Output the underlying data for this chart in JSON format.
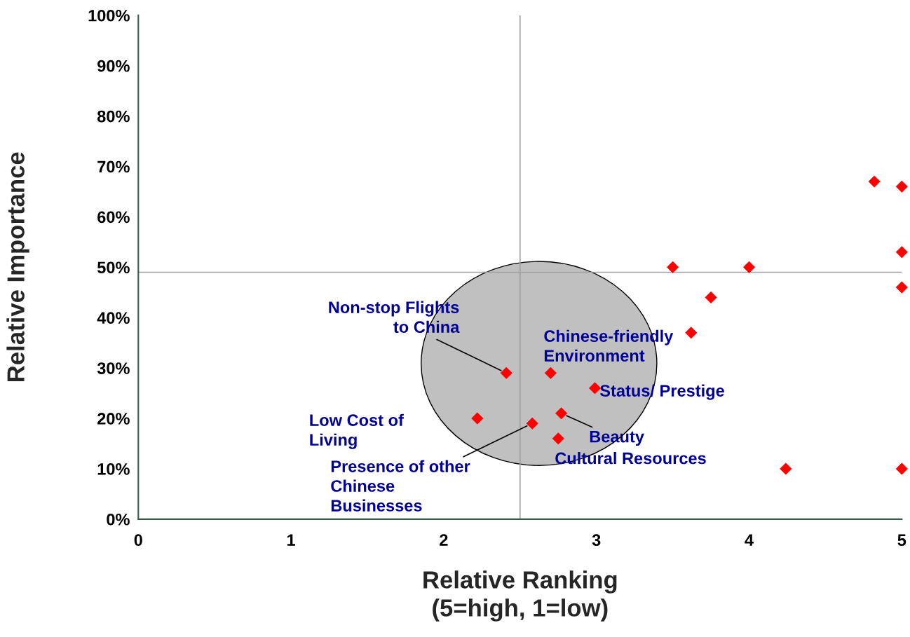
{
  "chart_data": {
    "type": "scatter",
    "xlabel": "Relative Ranking\n(5=high, 1=low)",
    "ylabel": "Relative Importance",
    "series": [
      {
        "color": "#ff0000",
        "x": [
          4.82,
          5,
          5,
          5,
          3.5,
          4.0,
          3.75,
          3.62,
          2.41,
          2.7,
          2.99,
          2.22,
          2.58,
          2.77,
          2.75,
          4.24,
          5
        ],
        "values": [
          67,
          66,
          53,
          46,
          50,
          50,
          44,
          37,
          29,
          29,
          26,
          20,
          19,
          21,
          16,
          10,
          10
        ]
      }
    ],
    "marker": "diamond",
    "legend": false,
    "grid": false,
    "xlim": [
      0,
      5
    ],
    "xticks": [
      0,
      1,
      2,
      3,
      4,
      5
    ],
    "ylim": [
      0,
      100
    ],
    "yticks": [
      {
        "value": 0,
        "label": "0%"
      },
      {
        "value": 10,
        "label": "10%"
      },
      {
        "value": 20,
        "label": "20%"
      },
      {
        "value": 30,
        "label": "30%"
      },
      {
        "value": 40,
        "label": "40%"
      },
      {
        "value": 50,
        "label": "50%"
      },
      {
        "value": 60,
        "label": "60%"
      },
      {
        "value": 70,
        "label": "70%"
      },
      {
        "value": 80,
        "label": "80%"
      },
      {
        "value": 90,
        "label": "90%"
      },
      {
        "value": 100,
        "label": "100%"
      }
    ],
    "ref_lines": [
      {
        "axis": "x",
        "value": 2.5,
        "color": "#a0a0a0"
      },
      {
        "axis": "y",
        "value": 49,
        "color": "#a0a0a0"
      }
    ],
    "annotations": [
      {
        "text": "Non-stop Flights\nto China",
        "x": 2.41,
        "y": 29
      },
      {
        "text": "Chinese-friendly\nEnvironment",
        "x": 2.7,
        "y": 29
      },
      {
        "text": "Status/ Prestige",
        "x": 2.99,
        "y": 26
      },
      "Low Cost of\nLiving",
      {
        "text": "Presence of other\nChinese\nBusinesses",
        "x": 2.58,
        "y": 19
      },
      {
        "text": "Beauty",
        "x": 2.77,
        "y": 21
      },
      {
        "text": "Cultural Resources",
        "x": 2.75,
        "y": 16
      }
    ]
  }
}
